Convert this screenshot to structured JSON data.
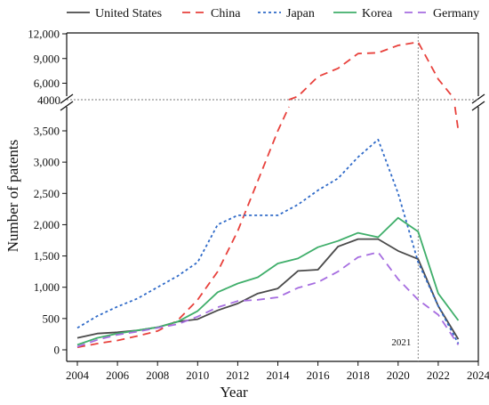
{
  "chart_data": {
    "type": "line",
    "xlabel": "Year",
    "ylabel": "Number of patents",
    "xlim": [
      2004,
      2024
    ],
    "x_ticks": [
      2004,
      2006,
      2008,
      2010,
      2012,
      2014,
      2016,
      2018,
      2020,
      2022,
      2024
    ],
    "x_tick_labels": [
      "2004",
      "2006",
      "2008",
      "2010",
      "2012",
      "2014",
      "2016",
      "2018",
      "2020",
      "2022",
      "2024"
    ],
    "y_axis_broken": true,
    "y_lower_range": [
      0,
      4000
    ],
    "y_upper_range": [
      4000,
      12000
    ],
    "y_break_label": "4000",
    "y_lower_ticks": [
      0,
      500,
      1000,
      1500,
      2000,
      2500,
      3000,
      3500
    ],
    "y_lower_tick_labels": [
      "0",
      "500",
      "1,000",
      "1,500",
      "2,000",
      "2,500",
      "3,000",
      "3,500"
    ],
    "y_upper_ticks": [
      6000,
      9000,
      12000
    ],
    "y_upper_tick_labels": [
      "6,000",
      "9,000",
      "12,000"
    ],
    "reference_line": {
      "x": 2021,
      "label": "2021"
    },
    "legend_position": "top",
    "grid": false,
    "x": [
      2004,
      2005,
      2006,
      2007,
      2008,
      2009,
      2010,
      2011,
      2012,
      2013,
      2014,
      2015,
      2016,
      2017,
      2018,
      2019,
      2020,
      2021,
      2022,
      2023
    ],
    "series": [
      {
        "name": "United States",
        "color": "#4a4a4a",
        "style": "solid",
        "values": [
          190,
          260,
          280,
          310,
          360,
          450,
          490,
          630,
          740,
          900,
          980,
          1260,
          1280,
          1650,
          1770,
          1770,
          1580,
          1450,
          700,
          170
        ]
      },
      {
        "name": "China",
        "color": "#e8413c",
        "style": "dashed",
        "values": [
          40,
          100,
          150,
          220,
          300,
          470,
          800,
          1250,
          1900,
          2700,
          3500,
          4400,
          6800,
          7800,
          9600,
          9700,
          10600,
          11000,
          6500,
          3500
        ]
      },
      {
        "name": "Japan",
        "color": "#2f6ac8",
        "style": "dotted",
        "values": [
          350,
          540,
          690,
          820,
          1000,
          1180,
          1400,
          2000,
          2150,
          2150,
          2150,
          2320,
          2550,
          2740,
          3080,
          3360,
          2500,
          1400,
          700,
          100
        ]
      },
      {
        "name": "Korea",
        "color": "#3fae6a",
        "style": "solid",
        "values": [
          80,
          190,
          260,
          310,
          360,
          450,
          620,
          920,
          1060,
          1160,
          1380,
          1460,
          1640,
          1740,
          1870,
          1800,
          2110,
          1890,
          900,
          470
        ]
      },
      {
        "name": "Germany",
        "color": "#a66de0",
        "style": "dashed",
        "values": [
          50,
          160,
          240,
          290,
          350,
          410,
          530,
          680,
          780,
          800,
          840,
          990,
          1080,
          1250,
          1480,
          1560,
          1130,
          800,
          560,
          80
        ]
      }
    ]
  }
}
